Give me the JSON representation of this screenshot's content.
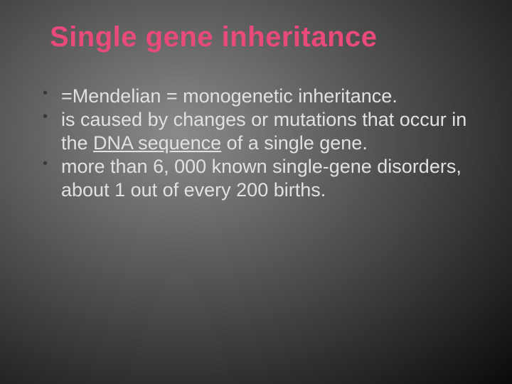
{
  "title": {
    "text": "Single gene inheritance",
    "color": "#e84a7a",
    "fontsize": 40,
    "fontweight": "bold"
  },
  "body": {
    "text_color": "#e1e1e1",
    "fontsize": 27,
    "bullet_color": "#3a3a3a"
  },
  "bullets": [
    {
      "text": "=Mendelian = monogenetic inheritance."
    },
    {
      "pre": "is caused by changes or mutations that occur  in the ",
      "underlined": "DNA sequence",
      "post": " of a single gene."
    },
    {
      "text": "more than 6, 000 known single-gene disorders, about 1 out of every 200 births."
    }
  ],
  "background": {
    "type": "radial-gradient",
    "light": "#8a8a8a",
    "dark": "#0a0a0a"
  }
}
